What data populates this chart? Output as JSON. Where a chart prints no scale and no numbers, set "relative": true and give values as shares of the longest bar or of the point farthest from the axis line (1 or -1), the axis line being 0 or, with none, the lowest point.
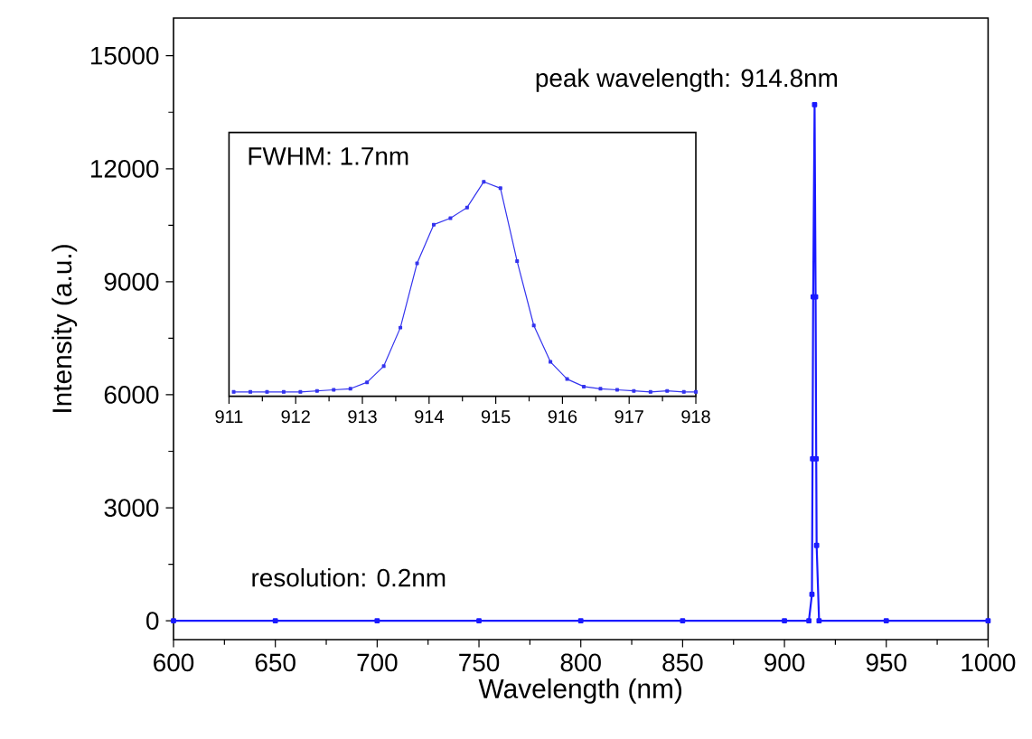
{
  "chart_data": [
    {
      "type": "line",
      "xlabel": "Wavelength (nm)",
      "ylabel": "Intensity (a.u.)",
      "xlim": [
        600,
        1000
      ],
      "ylim": [
        -500,
        16000
      ],
      "xticks": [
        600,
        650,
        700,
        750,
        800,
        850,
        900,
        950,
        1000
      ],
      "yticks": [
        0,
        3000,
        6000,
        9000,
        12000,
        15000
      ],
      "marker": "square",
      "color": "#1a1aff",
      "x": [
        600,
        650,
        700,
        750,
        800,
        850,
        900,
        912,
        913.5,
        913.8,
        914.1,
        914.8,
        915.3,
        915.6,
        915.8,
        917,
        950,
        1000
      ],
      "values": [
        0,
        0,
        0,
        0,
        0,
        0,
        0,
        0,
        700,
        4300,
        8600,
        13700,
        8600,
        4300,
        2000,
        0,
        0,
        0
      ],
      "annotations": [
        "peak wavelength: 914.8nm",
        "resolution: 0.2nm"
      ]
    },
    {
      "type": "line",
      "relative": true,
      "xlim": [
        911,
        918
      ],
      "xticks": [
        911,
        912,
        913,
        914,
        915,
        916,
        917,
        918
      ],
      "marker": "square",
      "color": "#3333ee",
      "x": [
        911.07,
        911.32,
        911.57,
        911.82,
        912.07,
        912.32,
        912.57,
        912.82,
        913.07,
        913.32,
        913.57,
        913.82,
        914.07,
        914.32,
        914.57,
        914.82,
        915.07,
        915.32,
        915.57,
        915.82,
        916.07,
        916.32,
        916.57,
        916.82,
        917.07,
        917.32,
        917.57,
        917.82,
        918
      ],
      "values": [
        0.02,
        0.02,
        0.02,
        0.02,
        0.02,
        0.025,
        0.03,
        0.035,
        0.065,
        0.14,
        0.32,
        0.62,
        0.8,
        0.83,
        0.88,
        1,
        0.97,
        0.63,
        0.33,
        0.16,
        0.08,
        0.045,
        0.035,
        0.03,
        0.025,
        0.02,
        0.025,
        0.02,
        0.02
      ],
      "annotations": [
        "FWHM: 1.7nm"
      ]
    }
  ]
}
